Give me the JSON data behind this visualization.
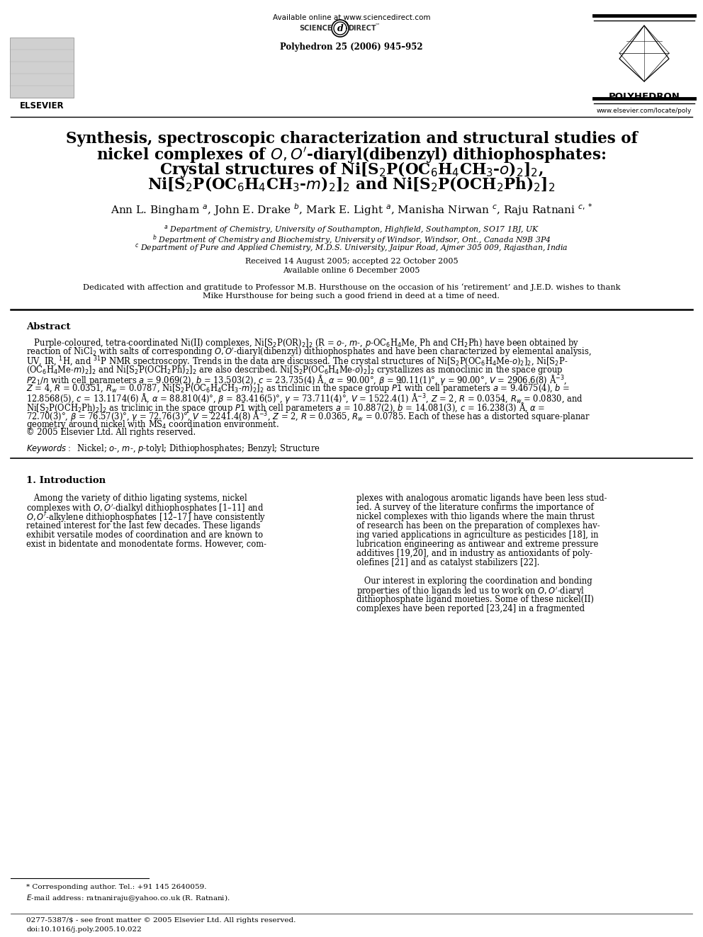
{
  "bg_color": "#ffffff",
  "top_url": "Available online at www.sciencedirect.com",
  "journal_ref": "Polyhedron 25 (2006) 945–952",
  "journal_name": "POLYHEDRON",
  "journal_url": "www.elsevier.com/locate/poly",
  "elsevier_label": "ELSEVIER",
  "title_line1": "Synthesis, spectroscopic characterization and structural studies of",
  "title_line2": "nickel complexes of $\\mathit{O,O'}$-diaryl(dibenzyl) dithiophosphates:",
  "title_line3": "Crystal structures of Ni[S$_2$P(OC$_6$H$_4$CH$_3$-$o$)$_2$]$_2$,",
  "title_line4": "Ni[S$_2$P(OC$_6$H$_4$CH$_3$-$m$)$_2$]$_2$ and Ni[S$_2$P(OCH$_2$Ph)$_2$]$_2$",
  "authors": "Ann L. Bingham $^{a}$, John E. Drake $^{b}$, Mark E. Light $^{a}$, Manisha Nirwan $^{c}$, Raju Ratnani $^{c,*}$",
  "affil_a": "$^{a}$ Department of Chemistry, University of Southampton, Highfield, Southampton, SO17 1BJ, UK",
  "affil_b": "$^{b}$ Department of Chemistry and Biochemistry, University of Windsor, Windsor, Ont., Canada N9B 3P4",
  "affil_c": "$^{c}$ Department of Pure and Applied Chemistry, M.D.S. University, Jaipur Road, Ajmer 305 009, Rajasthan, India",
  "received": "Received 14 August 2005; accepted 22 October 2005",
  "available": "Available online 6 December 2005",
  "dedic1": "Dedicated with affection and gratitude to Professor M.B. Hursthouse on the occasion of his ‘retirement’ and J.E.D. wishes to thank",
  "dedic2": "Mike Hursthouse for being such a good friend in deed at a time of need.",
  "abs_title": "Abstract",
  "abs_lines": [
    "   Purple-coloured, tetra-coordinated Ni(II) complexes, Ni[S$_2$P(OR)$_2$]$_2$ (R = $o$-, $m$-, $p$-OC$_6$H$_4$Me, Ph and CH$_2$Ph) have been obtained by",
    "reaction of NiCl$_2$ with salts of corresponding $O,O'$-diaryl(dibenzyl) dithiophosphates and have been characterized by elemental analysis,",
    "UV, IR, $^1$H, and $^{31}$P NMR spectroscopy. Trends in the data are discussed. The crystal structures of Ni[S$_2$P(OC$_6$H$_4$Me-$o$)$_2$]$_2$, Ni[S$_2$P-",
    "(OC$_6$H$_4$Me-$m$)$_2$]$_2$ and Ni[S$_2$P(OCH$_2$Ph)$_2$]$_2$ are also described. Ni[S$_2$P(OC$_6$H$_4$Me-$o$)$_2$]$_2$ crystallizes as monoclinic in the space group",
    "$P2_1/n$ with cell parameters $a$ = 9.069(2), $b$ = 13.503(2), $c$ = 23.735(4) Å, $\\alpha$ = 90.00°, $\\beta$ = 90.11(1)°, $\\gamma$ = 90.00°, $V$ = 2906.6(8) Å$^{-3}$,",
    "$Z$ = 4, $R$ = 0.0351, $R_w$ = 0.0787, Ni[S$_2$P(OC$_6$H$_4$CH$_3$-$m$)$_2$]$_2$ as triclinic in the space group $P\\bar{1}$ with cell parameters $a$ = 9.4675(4), $b$ =",
    "12.8568(5), $c$ = 13.1174(6) Å, $\\alpha$ = 88.810(4)°, $\\beta$ = 83.416(5)°, $\\gamma$ = 73.711(4)°, $V$ = 1522.4(1) Å$^{-3}$, $Z$ = 2, $R$ = 0.0354, $R_w$ = 0.0830, and",
    "Ni[S$_2$P(OCH$_2$Ph)$_2$]$_2$ as triclinic in the space group $P\\bar{1}$ with cell parameters $a$ = 10.887(2), $b$ = 14.081(3), $c$ = 16.238(3) Å, $\\alpha$ =",
    "72.70(3)°, $\\beta$ = 76.57(3)°, $\\gamma$ = 72.76(3)°, $V$ = 2241.4(8) Å$^{-3}$, $Z$ = 2, $R$ = 0.0365, $R_w$ = 0.0785. Each of these has a distorted square-planar",
    "geometry around nickel with MS$_4$ coordination environment.",
    "© 2005 Elsevier Ltd. All rights reserved."
  ],
  "kw_line": "$\\mathit{Keywords:}$  Nickel; $o$-, $m$-, $p$-tolyl; Dithiophosphates; Benzyl; Structure",
  "intro_title": "1. Introduction",
  "col1_lines": [
    "   Among the variety of dithio ligating systems, nickel",
    "complexes with $O,O'$-dialkyl dithiophosphates [1–11] and",
    "$O,O'$-alkylene dithiophosphates [12–17] have consistently",
    "retained interest for the last few decades. These ligands",
    "exhibit versatile modes of coordination and are known to",
    "exist in bidentate and monodentate forms. However, com-"
  ],
  "col2_lines": [
    "plexes with analogous aromatic ligands have been less stud-",
    "ied. A survey of the literature confirms the importance of",
    "nickel complexes with thio ligands where the main thrust",
    "of research has been on the preparation of complexes hav-",
    "ing varied applications in agriculture as pesticides [18], in",
    "lubrication engineering as antiwear and extreme pressure",
    "additives [19,20], and in industry as antioxidants of poly-",
    "olefines [21] and as catalyst stabilizers [22].",
    "",
    "   Our interest in exploring the coordination and bonding",
    "properties of thio ligands led us to work on $O,O'$-diaryl",
    "dithiophosphate ligand moieties. Some of these nickel(II)",
    "complexes have been reported [23,24] in a fragmented"
  ],
  "fn_star": "* Corresponding author. Tel.: +91 145 2640059.",
  "fn_email": "$E$-mail address: ratnaniraju@yahoo.co.uk (R. Ratnani).",
  "footer1": "0277-5387/$ - see front matter © 2005 Elsevier Ltd. All rights reserved.",
  "footer2": "doi:10.1016/j.poly.2005.10.022"
}
